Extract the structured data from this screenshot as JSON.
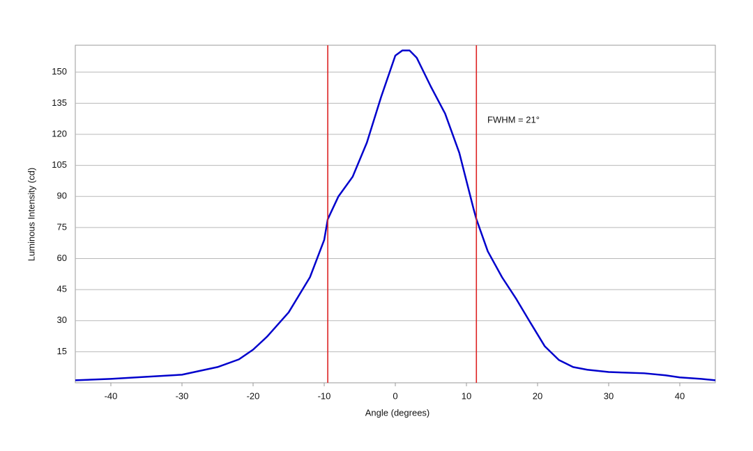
{
  "chart_data": {
    "type": "line",
    "x_label": "Angle (degrees)",
    "y_label": "Luminous Intensity (cd)",
    "annotation": "FWHM = 21°",
    "x": [
      -45,
      -40,
      -35,
      -30,
      -25,
      -22,
      -20,
      -18,
      -15,
      -12,
      -10,
      -9.5,
      -8,
      -6,
      -4,
      -2,
      0,
      1,
      2,
      3,
      5,
      7,
      9,
      11,
      11.4,
      13,
      15,
      17,
      19,
      21,
      23,
      25,
      27,
      30,
      35,
      38,
      40,
      43,
      45
    ],
    "series": [
      {
        "color": "#0000cc",
        "values": [
          1.2,
          1.9,
          2.9,
          3.9,
          7.6,
          11.3,
          16,
          22.4,
          34,
          51,
          69,
          79,
          90,
          99.5,
          116,
          138,
          158,
          160.5,
          160.5,
          157,
          143,
          130,
          111,
          84,
          79,
          63.5,
          51,
          40.5,
          29,
          17.7,
          11,
          7.6,
          6.3,
          5.2,
          4.6,
          3.6,
          2.6,
          1.9,
          1.2
        ]
      }
    ],
    "vlines": {
      "values": [
        -9.5,
        11.4
      ],
      "color": "#dd2222"
    },
    "xlim": [
      -45,
      45
    ],
    "ylim": [
      0,
      163
    ],
    "xticks": [
      -40,
      -30,
      -20,
      -10,
      0,
      10,
      20,
      30,
      40
    ],
    "yticks": [
      15,
      30,
      45,
      60,
      75,
      90,
      105,
      120,
      135,
      150
    ],
    "grid": true
  }
}
